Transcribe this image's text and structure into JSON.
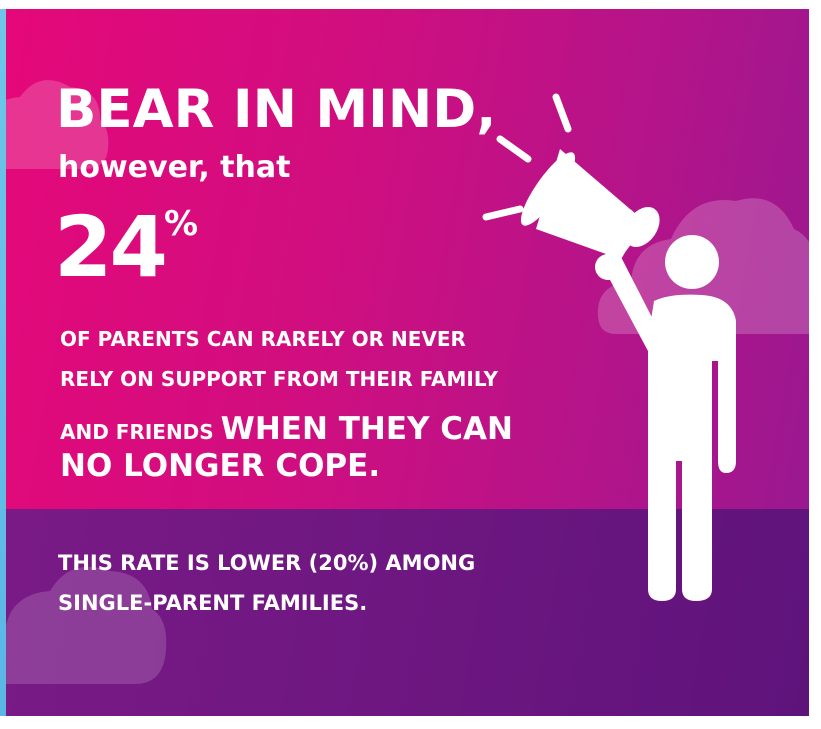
{
  "headline": "BEAR IN MIND,",
  "subheadline": "however, that",
  "stat": {
    "value": "24",
    "unit": "%"
  },
  "body": {
    "line1": "OF PARENTS CAN RARELY OR NEVER",
    "line2": "RELY ON SUPPORT FROM THEIR FAMILY",
    "line3_small": "AND FRIENDS",
    "line3_big": "WHEN THEY CAN",
    "line4_big": "NO LONGER COPE."
  },
  "footnote": {
    "line1": "THIS RATE IS LOWER (20%) AMONG",
    "line2": "SINGLE-PARENT FAMILIES."
  },
  "illustration": {
    "icons": [
      "megaphone-person-icon",
      "cloud-icon"
    ],
    "colors": {
      "magenta": "#e5087a",
      "purple": "#9a1890",
      "dark_purple": "#6b1680",
      "accent_blue": "#6ec6ea",
      "figure": "#ffffff"
    }
  }
}
